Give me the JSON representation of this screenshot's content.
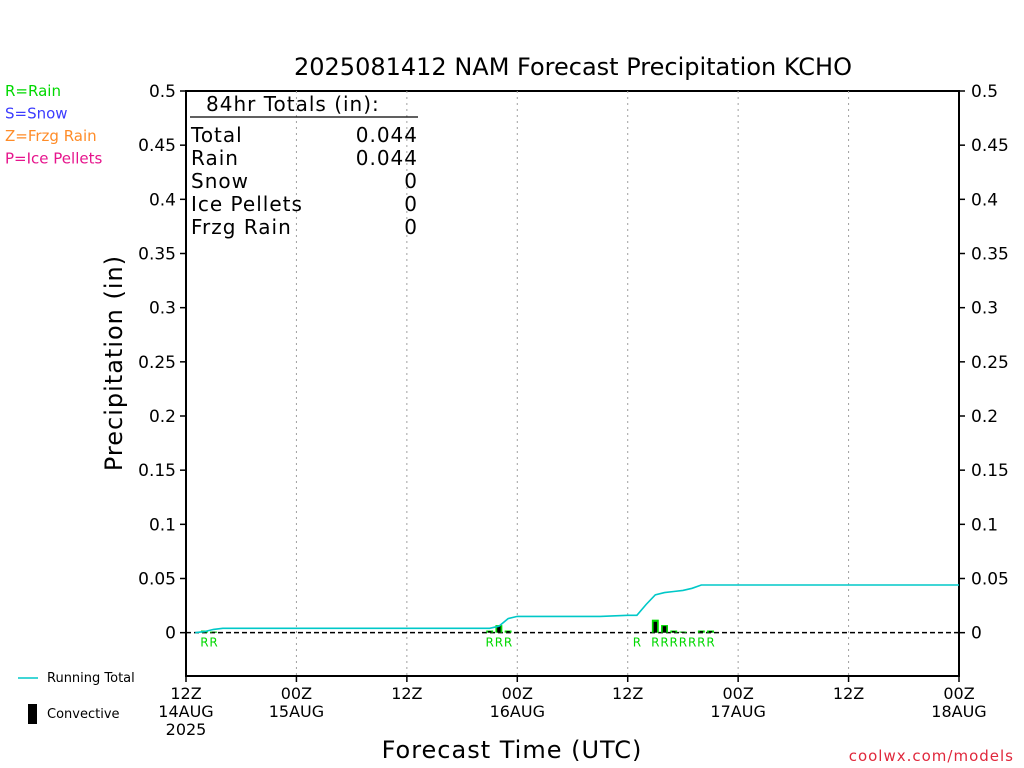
{
  "chart_data": {
    "type": "bar",
    "title": "2025081412 NAM Forecast Precipitation KCHO",
    "xlabel": "Forecast Time (UTC)",
    "ylabel": "Precipitation (in)",
    "ylim": [
      -0.04,
      0.5
    ],
    "yticks": [
      "0",
      "0.05",
      "0.1",
      "0.15",
      "0.2",
      "0.25",
      "0.3",
      "0.35",
      "0.4",
      "0.45",
      "0.5"
    ],
    "xlim_hours": [
      0,
      84
    ],
    "xticks": [
      {
        "hour": 0,
        "lines": [
          "12Z",
          "14AUG",
          "2025"
        ]
      },
      {
        "hour": 12,
        "lines": [
          "00Z",
          "15AUG"
        ]
      },
      {
        "hour": 24,
        "lines": [
          "12Z"
        ]
      },
      {
        "hour": 36,
        "lines": [
          "00Z",
          "16AUG"
        ]
      },
      {
        "hour": 48,
        "lines": [
          "12Z"
        ]
      },
      {
        "hour": 60,
        "lines": [
          "00Z",
          "17AUG"
        ]
      },
      {
        "hour": 72,
        "lines": [
          "12Z"
        ]
      },
      {
        "hour": 84,
        "lines": [
          "00Z",
          "18AUG"
        ]
      }
    ],
    "grid": "vertical-dotted",
    "series": [
      {
        "name": "Running Total",
        "color": "#00c8c8",
        "x": [
          1,
          2,
          3,
          4,
          5,
          33,
          34,
          35,
          36,
          37,
          40,
          45,
          48,
          49,
          50,
          51,
          52,
          53,
          54,
          55,
          56,
          57,
          58,
          84
        ],
        "y": [
          0,
          0.001,
          0.003,
          0.004,
          0.004,
          0.004,
          0.006,
          0.013,
          0.015,
          0.015,
          0.015,
          0.015,
          0.016,
          0.016,
          0.026,
          0.035,
          0.037,
          0.038,
          0.039,
          0.041,
          0.044,
          0.044,
          0.044,
          0.044
        ]
      },
      {
        "name": "Precipitation",
        "green_color": "#00d800",
        "convective_color": "#000000",
        "bars": [
          {
            "x": 2,
            "total": 0.002,
            "convective": 0.0015
          },
          {
            "x": 3,
            "total": 0.001,
            "convective": 0.0008
          },
          {
            "x": 33,
            "total": 0.002,
            "convective": 0.0015
          },
          {
            "x": 34,
            "total": 0.007,
            "convective": 0.006
          },
          {
            "x": 35,
            "total": 0.002,
            "convective": 0.0015
          },
          {
            "x": 51,
            "total": 0.012,
            "convective": 0.01
          },
          {
            "x": 52,
            "total": 0.007,
            "convective": 0.006
          },
          {
            "x": 53,
            "total": 0.002,
            "convective": 0.0015
          },
          {
            "x": 54,
            "total": 0.001,
            "convective": 0.0008
          },
          {
            "x": 56,
            "total": 0.002,
            "convective": 0.0015
          },
          {
            "x": 57,
            "total": 0.002,
            "convective": 0.0015
          }
        ]
      }
    ],
    "ptype_labels": [
      {
        "x": 2,
        "text": "R"
      },
      {
        "x": 3,
        "text": "R"
      },
      {
        "x": 33,
        "text": "R"
      },
      {
        "x": 34,
        "text": "R"
      },
      {
        "x": 35,
        "text": "R"
      },
      {
        "x": 49,
        "text": "R"
      },
      {
        "x": 51,
        "text": "R"
      },
      {
        "x": 52,
        "text": "R"
      },
      {
        "x": 53,
        "text": "R"
      },
      {
        "x": 54,
        "text": "R"
      },
      {
        "x": 55,
        "text": "R"
      },
      {
        "x": 56,
        "text": "R"
      },
      {
        "x": 57,
        "text": "R"
      }
    ],
    "totals_box": {
      "header": "84hr Totals (in):",
      "rows": [
        {
          "label": "Total",
          "value": "0.044"
        },
        {
          "label": "Rain",
          "value": "0.044"
        },
        {
          "label": "Snow",
          "value": "0"
        },
        {
          "label": "Ice Pellets",
          "value": "0"
        },
        {
          "label": "Frzg Rain",
          "value": "0"
        }
      ]
    },
    "ptype_legend": [
      {
        "text": "R=Rain",
        "color": "#00d800"
      },
      {
        "text": "S=Snow",
        "color": "#3c3cff"
      },
      {
        "text": "Z=Frzg Rain",
        "color": "#ff8c28"
      },
      {
        "text": "P=Ice Pellets",
        "color": "#e6148c"
      }
    ],
    "legend": [
      {
        "text": "Running Total",
        "color": "#00c8c8",
        "symbol": "line"
      },
      {
        "text": "Convective",
        "color": "#000000",
        "symbol": "bar"
      }
    ],
    "credit": "coolwx.com/models",
    "credit_color": "#e0283c"
  }
}
